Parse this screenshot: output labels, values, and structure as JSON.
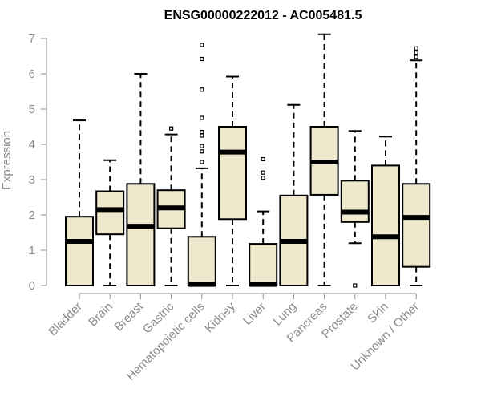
{
  "chart_data": {
    "type": "boxplot",
    "title": "ENSG00000222012 - AC005481.5",
    "xlabel": "",
    "ylabel": "Expression",
    "ylim": [
      0,
      7.2
    ],
    "yticks": [
      "0",
      "1",
      "2",
      "3",
      "4",
      "5",
      "6",
      "7"
    ],
    "box_fill": "#eee8cd",
    "categories": [
      "Bladder",
      "Brain",
      "Breast",
      "Gastric",
      "Hematopoietic cells",
      "Kidney",
      "Liver",
      "Lung",
      "Pancreas",
      "Prostate",
      "Skin",
      "Unknown / Other"
    ],
    "boxes": [
      {
        "min": 0.0,
        "q1": 0.0,
        "median": 1.25,
        "q3": 1.95,
        "max": 4.68,
        "outliers": []
      },
      {
        "min": 0.0,
        "q1": 1.45,
        "median": 2.15,
        "q3": 2.67,
        "max": 3.55,
        "outliers": []
      },
      {
        "min": 0.0,
        "q1": 0.0,
        "median": 1.68,
        "q3": 2.88,
        "max": 6.0,
        "outliers": []
      },
      {
        "min": 0.0,
        "q1": 1.62,
        "median": 2.2,
        "q3": 2.7,
        "max": 4.28,
        "outliers": [
          4.45
        ]
      },
      {
        "min": 0.0,
        "q1": 0.0,
        "median": 0.03,
        "q3": 1.38,
        "max": 3.32,
        "outliers": [
          3.5,
          3.8,
          3.95,
          4.25,
          4.35,
          4.75,
          5.55,
          6.42,
          6.82
        ]
      },
      {
        "min": 0.0,
        "q1": 1.88,
        "median": 3.78,
        "q3": 4.5,
        "max": 5.92,
        "outliers": []
      },
      {
        "min": 0.0,
        "q1": 0.0,
        "median": 0.03,
        "q3": 1.18,
        "max": 2.1,
        "outliers": [
          3.05,
          3.2,
          3.58
        ]
      },
      {
        "min": 0.0,
        "q1": 0.0,
        "median": 1.25,
        "q3": 2.55,
        "max": 5.12,
        "outliers": []
      },
      {
        "min": 0.0,
        "q1": 2.57,
        "median": 3.5,
        "q3": 4.5,
        "max": 7.12,
        "outliers": []
      },
      {
        "min": 1.2,
        "q1": 1.8,
        "median": 2.08,
        "q3": 2.97,
        "max": 4.38,
        "outliers": [
          0.0
        ]
      },
      {
        "min": 0.0,
        "q1": 0.0,
        "median": 1.38,
        "q3": 3.4,
        "max": 4.22,
        "outliers": []
      },
      {
        "min": 0.0,
        "q1": 0.53,
        "median": 1.93,
        "q3": 2.88,
        "max": 6.38,
        "outliers": [
          6.48,
          6.6,
          6.72
        ]
      }
    ]
  }
}
